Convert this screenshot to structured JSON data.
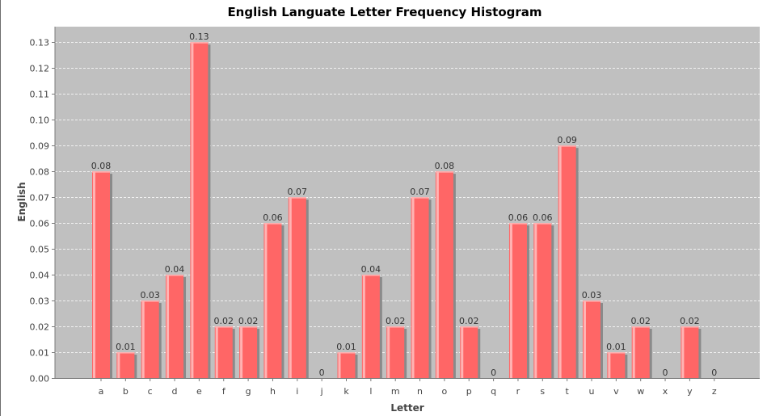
{
  "chart_data": {
    "type": "bar",
    "title": "English Languate Letter Frequency Histogram",
    "xlabel": "Letter",
    "ylabel": "English",
    "ylim": [
      0,
      0.136
    ],
    "yticks": [
      "0.00",
      "0.01",
      "0.02",
      "0.03",
      "0.04",
      "0.05",
      "0.06",
      "0.07",
      "0.08",
      "0.09",
      "0.10",
      "0.11",
      "0.12",
      "0.13"
    ],
    "grid": true,
    "categories": [
      "a",
      "b",
      "c",
      "d",
      "e",
      "f",
      "g",
      "h",
      "i",
      "j",
      "k",
      "l",
      "m",
      "n",
      "o",
      "p",
      "q",
      "r",
      "s",
      "t",
      "u",
      "v",
      "w",
      "x",
      "y",
      "z"
    ],
    "values": [
      0.08,
      0.01,
      0.03,
      0.04,
      0.13,
      0.02,
      0.02,
      0.06,
      0.07,
      0,
      0.01,
      0.04,
      0.02,
      0.07,
      0.08,
      0.02,
      0,
      0.06,
      0.06,
      0.09,
      0.03,
      0.01,
      0.02,
      0,
      0.02,
      0
    ],
    "data_labels": [
      "0.08",
      "0.01",
      "0.03",
      "0.04",
      "0.13",
      "0.02",
      "0.02",
      "0.06",
      "0.07",
      "0",
      "0.01",
      "0.04",
      "0.02",
      "0.07",
      "0.08",
      "0.02",
      "0",
      "0.06",
      "0.06",
      "0.09",
      "0.03",
      "0.01",
      "0.02",
      "0",
      "0.02",
      "0"
    ],
    "colors": {
      "bar": "#ff6666",
      "bar_highlight": "#ffb3b3",
      "shadow": "#8a8a8a",
      "plot_bg": "#c0c0c0",
      "grid": "#ffffff"
    }
  }
}
